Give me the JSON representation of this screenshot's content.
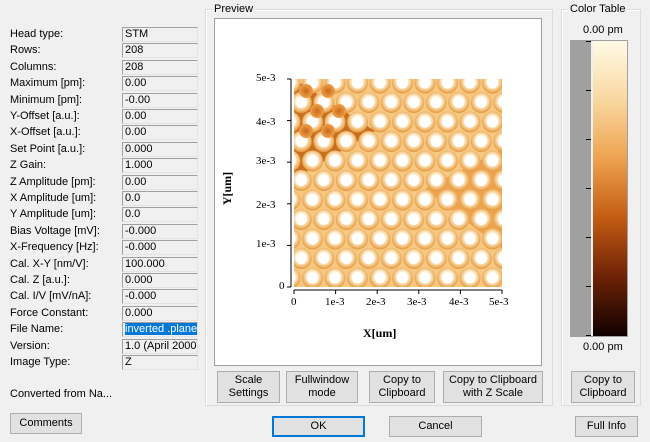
{
  "params": [
    {
      "label": "Head type:",
      "value": "STM"
    },
    {
      "label": "Rows:",
      "value": "208"
    },
    {
      "label": "Columns:",
      "value": "208"
    },
    {
      "label": "Maximum [pm]:",
      "value": "0.00"
    },
    {
      "label": "Minimum [pm]:",
      "value": "-0.00"
    },
    {
      "label": "Y-Offset [a.u.]:",
      "value": "0.00"
    },
    {
      "label": "X-Offset [a.u.]:",
      "value": "0.00"
    },
    {
      "label": "Set Point [a.u.]:",
      "value": "0.000"
    },
    {
      "label": "Z Gain:",
      "value": "1.000"
    },
    {
      "label": "Z Amplitude [pm]:",
      "value": "0.00"
    },
    {
      "label": "X Amplitude [um]:",
      "value": "0.0"
    },
    {
      "label": "Y Amplitude [um]:",
      "value": "0.0"
    },
    {
      "label": "Bias Voltage [mV]:",
      "value": "-0.000"
    },
    {
      "label": "X-Frequency [Hz]:",
      "value": "-0.000"
    },
    {
      "label": "Cal. X-Y [nm/V]:",
      "value": "100.000"
    },
    {
      "label": "Cal. Z [a.u.]:",
      "value": "0.000"
    },
    {
      "label": "Cal. I/V [mV/nA]:",
      "value": "-0.000"
    },
    {
      "label": "Force Constant:",
      "value": "0.000"
    },
    {
      "label": "File Name:",
      "value": "inverted .plane"
    },
    {
      "label": "Version:",
      "value": "1.0 (April 2000)"
    },
    {
      "label": "Image Type:",
      "value": "Z"
    }
  ],
  "converted_text": "Converted from Na...",
  "buttons": {
    "comments": "Comments",
    "scale_settings": "Scale\nSettings",
    "fullwindow_mode": "Fullwindow\nmode",
    "copy_clipboard": "Copy to\nClipboard",
    "copy_clipboard_z": "Copy to Clipboard\nwith Z Scale",
    "copy_clipboard_ct": "Copy to\nClipboard",
    "ok": "OK",
    "cancel": "Cancel",
    "full_info": "Full Info"
  },
  "preview": {
    "title": "Preview",
    "xlabel": "X[um]",
    "ylabel": "Y[um]",
    "xticks": [
      "0",
      "1e-3",
      "2e-3",
      "3e-3",
      "4e-3",
      "5e-3"
    ],
    "yticks": [
      "0",
      "1e-3",
      "2e-3",
      "3e-3",
      "4e-3",
      "5e-3"
    ]
  },
  "color_table": {
    "title": "Color Table",
    "top_label": "0.00 pm",
    "bottom_label": "0.00 pm",
    "colors": [
      "#fffbe6",
      "#f9d7a0",
      "#eea24f",
      "#c35b13",
      "#6e2206",
      "#100000"
    ]
  }
}
